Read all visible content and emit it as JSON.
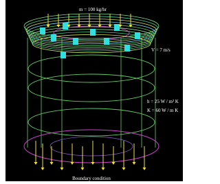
{
  "labels": {
    "mass_flow": "m = 100 kg/hr",
    "velocity": "V = 7 m/s",
    "heat_transfer": "h = 25 W / m² K",
    "conductivity": "K = 60 W / m K",
    "boundary": "Boundary condition"
  }
}
